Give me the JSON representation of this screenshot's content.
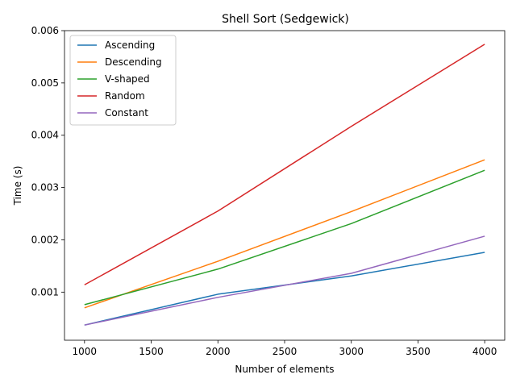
{
  "chart_data": {
    "type": "line",
    "title": "Shell Sort (Sedgewick)",
    "xlabel": "Number of elements",
    "ylabel": "Time (s)",
    "x": [
      1000,
      2000,
      3000,
      4000
    ],
    "xlim": [
      850,
      4150
    ],
    "ylim": [
      8e-05,
      0.006
    ],
    "xticks": [
      1000,
      1500,
      2000,
      2500,
      3000,
      3500,
      4000
    ],
    "yticks": [
      0.001,
      0.002,
      0.003,
      0.004,
      0.005,
      0.006
    ],
    "ytick_labels": [
      "0.001",
      "0.002",
      "0.003",
      "0.004",
      "0.005",
      "0.006"
    ],
    "grid": false,
    "legend_position": "top-left",
    "series": [
      {
        "name": "Ascending",
        "color": "#1f77b4",
        "values": [
          0.00037,
          0.00096,
          0.00131,
          0.00176
        ]
      },
      {
        "name": "Descending",
        "color": "#ff7f0e",
        "values": [
          0.0007,
          0.00159,
          0.00254,
          0.00353
        ]
      },
      {
        "name": "V-shaped",
        "color": "#2ca02c",
        "values": [
          0.00076,
          0.00144,
          0.00231,
          0.00333
        ]
      },
      {
        "name": "Random",
        "color": "#d62728",
        "values": [
          0.00114,
          0.00255,
          0.00417,
          0.00574
        ]
      },
      {
        "name": "Constant",
        "color": "#9467bd",
        "values": [
          0.00037,
          0.0009,
          0.00136,
          0.00207
        ]
      }
    ]
  }
}
